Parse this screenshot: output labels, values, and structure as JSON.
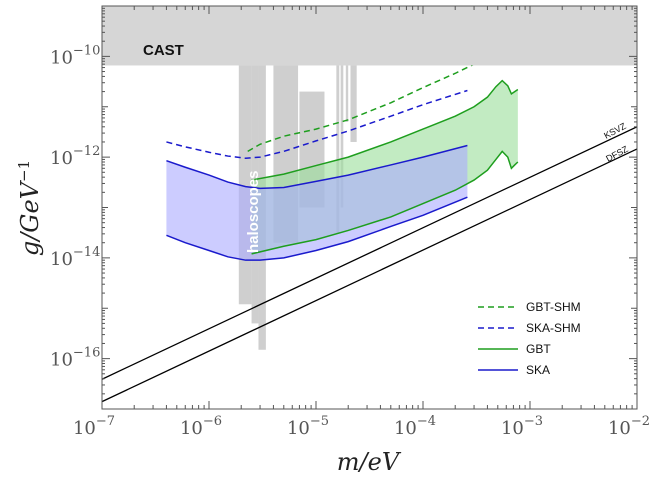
{
  "chart_data": {
    "type": "line",
    "xlabel": "m/eV",
    "ylabel": "g/GeV^-1",
    "x_scale": "log",
    "y_scale": "log",
    "xlim": [
      1e-07,
      0.01
    ],
    "ylim": [
      1e-17,
      1e-09
    ],
    "x_ticks": [
      {
        "value": 1e-07,
        "label": "10",
        "exp": "-7"
      },
      {
        "value": 1e-06,
        "label": "10",
        "exp": "-6"
      },
      {
        "value": 1e-05,
        "label": "10",
        "exp": "-5"
      },
      {
        "value": 0.0001,
        "label": "10",
        "exp": "-4"
      },
      {
        "value": 0.001,
        "label": "10",
        "exp": "-3"
      },
      {
        "value": 0.01,
        "label": "10",
        "exp": "-2"
      }
    ],
    "y_ticks": [
      {
        "value": 1e-16,
        "label": "10",
        "exp": "-16"
      },
      {
        "value": 1e-14,
        "label": "10",
        "exp": "-14"
      },
      {
        "value": 1e-12,
        "label": "10",
        "exp": "-12"
      },
      {
        "value": 1e-10,
        "label": "10",
        "exp": "-10"
      }
    ],
    "grid": false,
    "legend_position": "bottom-right",
    "regions": [
      {
        "label": "CAST",
        "g_min": 6.6e-11,
        "m_min": 1e-07,
        "m_max": 0.01,
        "color": "#d6d6d6"
      },
      {
        "label": "haloscopes",
        "color": "#cfcfcf"
      }
    ],
    "haloscope_bands": [
      {
        "m_min": 1.9e-06,
        "m_max": 2.5e-06,
        "g_max": 6.6e-11,
        "g_min": 1.2e-15
      },
      {
        "m_min": 2.5e-06,
        "m_max": 2.9e-06,
        "g_max": 6.6e-11,
        "g_min": 5e-16
      },
      {
        "m_min": 2.9e-06,
        "m_max": 3.4e-06,
        "g_max": 6.6e-11,
        "g_min": 1.5e-16
      },
      {
        "m_min": 4e-06,
        "m_max": 6.8e-06,
        "g_max": 6.6e-11,
        "g_min": 2e-14
      },
      {
        "m_min": 7e-06,
        "m_max": 1.2e-05,
        "g_max": 2e-11,
        "g_min": 1e-13
      },
      {
        "m_min": 1.55e-05,
        "m_max": 1.65e-05,
        "g_max": 6.6e-11,
        "g_min": 3e-14
      },
      {
        "m_min": 1.7e-05,
        "m_max": 1.8e-05,
        "g_max": 6.6e-11,
        "g_min": 1e-13
      },
      {
        "m_min": 1.9e-05,
        "m_max": 2e-05,
        "g_max": 6.6e-11,
        "g_min": 5e-12
      },
      {
        "m_min": 2.1e-05,
        "m_max": 2.4e-05,
        "g_max": 6.6e-11,
        "g_min": 2e-12
      }
    ],
    "theory_lines": [
      {
        "name": "KSVZ",
        "x": [
          1e-07,
          0.01
        ],
        "y": [
          3.9e-17,
          4e-12
        ]
      },
      {
        "name": "DFSZ",
        "x": [
          1e-07,
          0.01
        ],
        "y": [
          1.4e-17,
          1.45e-12
        ]
      }
    ],
    "series": [
      {
        "name": "GBT-SHM",
        "style": "dashed",
        "color": "#1e9e1e",
        "x": [
          2.3e-06,
          3e-06,
          5e-06,
          1e-05,
          2e-05,
          5e-05,
          0.0001,
          0.0002,
          0.0003,
          0.0004,
          0.00048,
          0.00055,
          0.00062,
          0.00067,
          0.00072,
          0.00077
        ],
        "y": [
          1.3e-12,
          1.8e-12,
          2.6e-12,
          3.6e-12,
          5.5e-12,
          1.2e-11,
          2.4e-11,
          4.6e-11,
          7e-11,
          1.1e-10,
          1.9e-10,
          2.7e-10,
          2.6e-10,
          1.9e-10,
          1.7e-10,
          2.1e-10
        ]
      },
      {
        "name": "SKA-SHM",
        "style": "dashed",
        "color": "#1a1acc",
        "x": [
          4e-07,
          6e-07,
          1e-06,
          1.5e-06,
          2.2e-06,
          3e-06,
          5e-06,
          1e-05,
          2e-05,
          5e-05,
          0.0001,
          0.00026
        ],
        "y": [
          2e-12,
          1.6e-12,
          1.25e-12,
          1.05e-12,
          9.5e-13,
          1e-12,
          1.3e-12,
          2.1e-12,
          3.3e-12,
          6.5e-12,
          1.1e-11,
          2.1e-11
        ]
      },
      {
        "name": "GBT",
        "style": "solid",
        "color": "#1e9e1e",
        "fill": "#99dd99",
        "x": [
          2.5e-06,
          5e-06,
          1e-05,
          2e-05,
          5e-05,
          0.0001,
          0.0002,
          0.0003,
          0.0004,
          0.00048,
          0.00055,
          0.00062,
          0.00067,
          0.00072,
          0.00077
        ],
        "upper": [
          3.5e-13,
          4.6e-13,
          6.8e-13,
          1e-12,
          2e-12,
          3.6e-12,
          6.5e-12,
          1e-11,
          1.55e-11,
          2.5e-11,
          3.3e-11,
          2.6e-11,
          1.8e-11,
          2e-11,
          2.2e-11
        ],
        "lower": [
          1.2e-14,
          1.7e-14,
          2.3e-14,
          3.5e-14,
          6.5e-14,
          1.2e-13,
          2.2e-13,
          3.5e-13,
          5.5e-13,
          9e-13,
          1.3e-12,
          1e-12,
          6e-13,
          7e-13,
          8e-13
        ]
      },
      {
        "name": "SKA",
        "style": "solid",
        "color": "#1a1acc",
        "fill": "#aaaaff",
        "x": [
          4e-07,
          6e-07,
          1e-06,
          1.5e-06,
          2.2e-06,
          3e-06,
          5e-06,
          1e-05,
          2e-05,
          5e-05,
          0.0001,
          0.00026
        ],
        "upper": [
          8.5e-13,
          6.3e-13,
          4.4e-13,
          3.2e-13,
          2.6e-13,
          2.4e-13,
          2.5e-13,
          3.3e-13,
          4.4e-13,
          7e-13,
          1e-12,
          1.7e-12
        ],
        "lower": [
          2.8e-14,
          2e-14,
          1.4e-14,
          1.05e-14,
          9e-15,
          9e-15,
          1e-14,
          1.4e-14,
          2.1e-14,
          4.2e-14,
          7e-14,
          1.6e-13
        ]
      }
    ]
  }
}
